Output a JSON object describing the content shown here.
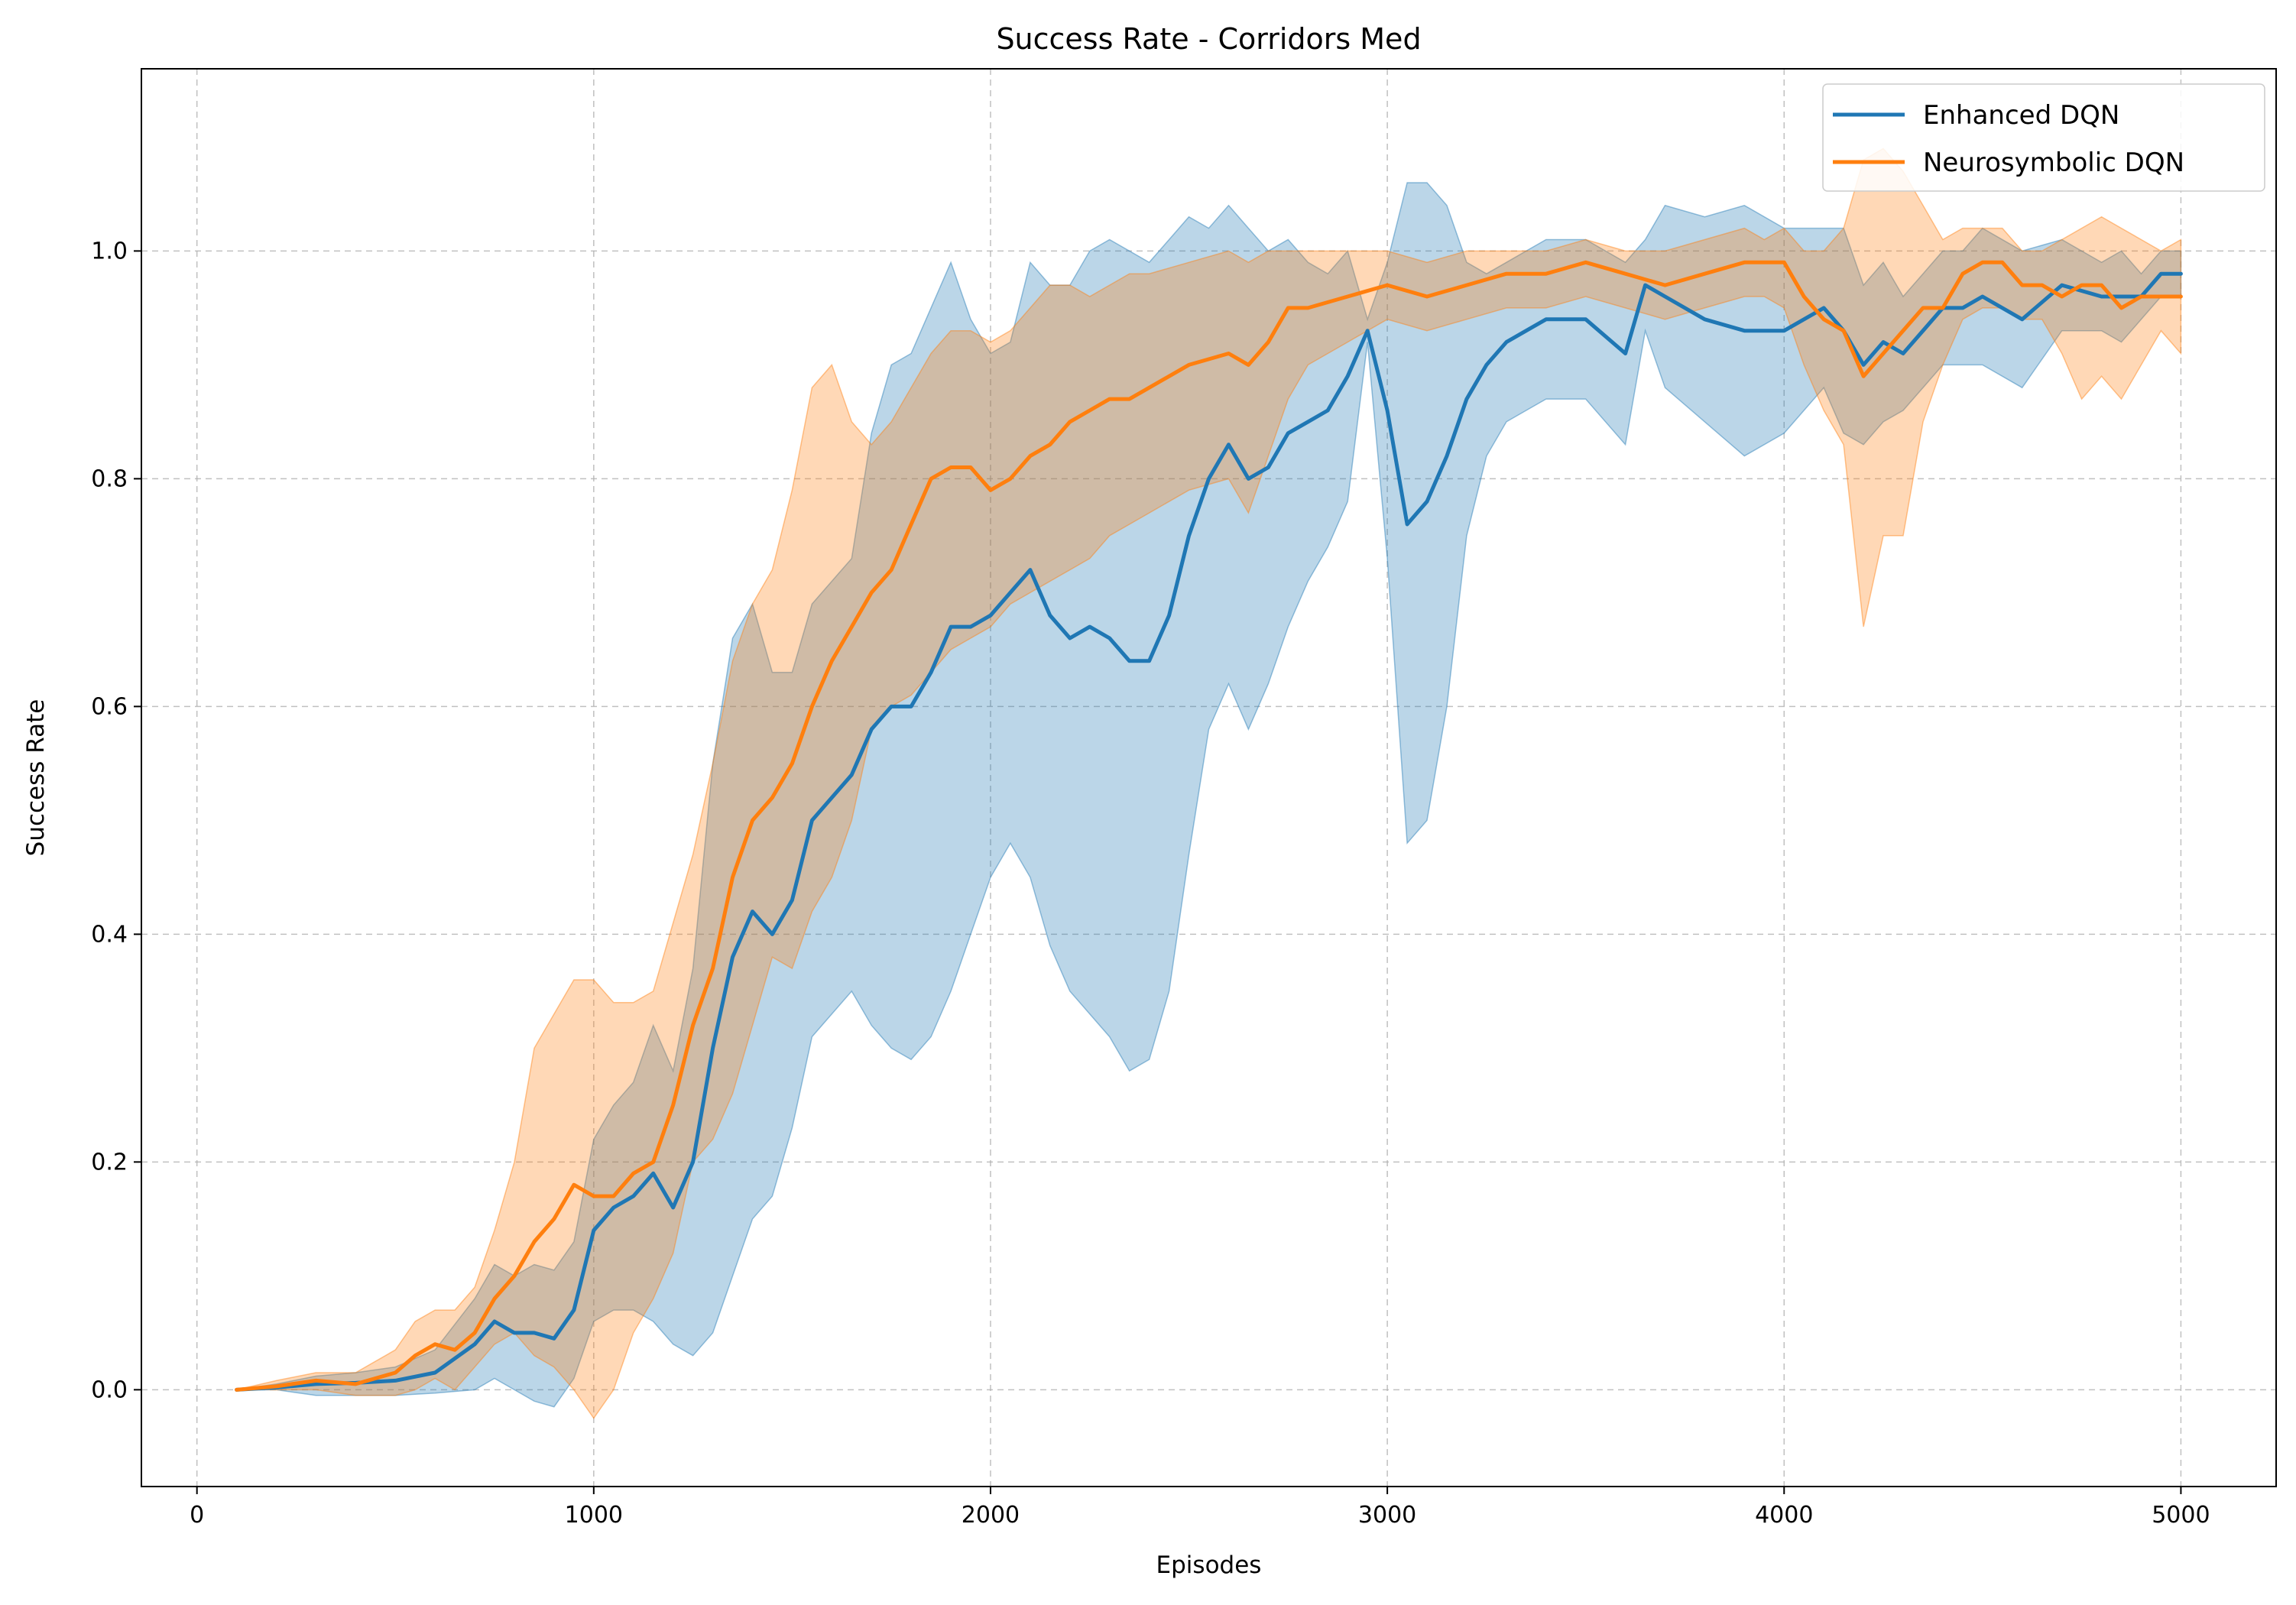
{
  "chart_data": {
    "type": "line",
    "title": "Success Rate - Corridors Med",
    "xlabel": "Episodes",
    "ylabel": "Success Rate",
    "xlim": [
      -140,
      5240
    ],
    "ylim": [
      -0.085,
      1.16
    ],
    "xticks": [
      0,
      1000,
      2000,
      3000,
      4000,
      5000
    ],
    "xtick_labels": [
      "0",
      "1000",
      "2000",
      "3000",
      "4000",
      "5000"
    ],
    "yticks": [
      0.0,
      0.2,
      0.4,
      0.6,
      0.8,
      1.0
    ],
    "ytick_labels": [
      "0.0",
      "0.2",
      "0.4",
      "0.6",
      "0.8",
      "1.0"
    ],
    "grid": true,
    "legend_position": "top-right",
    "series": [
      {
        "name": "Enhanced DQN",
        "color": "#1f77b4",
        "x": [
          100,
          200,
          300,
          400,
          500,
          600,
          700,
          750,
          800,
          850,
          900,
          950,
          1000,
          1050,
          1100,
          1150,
          1200,
          1250,
          1300,
          1350,
          1400,
          1450,
          1500,
          1550,
          1600,
          1650,
          1700,
          1750,
          1800,
          1850,
          1900,
          1950,
          2000,
          2050,
          2100,
          2150,
          2200,
          2250,
          2300,
          2350,
          2400,
          2450,
          2500,
          2550,
          2600,
          2650,
          2700,
          2750,
          2800,
          2850,
          2900,
          2950,
          3000,
          3050,
          3100,
          3150,
          3200,
          3250,
          3300,
          3350,
          3400,
          3500,
          3600,
          3650,
          3700,
          3800,
          3900,
          4000,
          4100,
          4150,
          4200,
          4250,
          4300,
          4350,
          4400,
          4450,
          4500,
          4600,
          4700,
          4800,
          4850,
          4900,
          4950,
          5000
        ],
        "mean": [
          0.0,
          0.002,
          0.005,
          0.006,
          0.008,
          0.015,
          0.04,
          0.06,
          0.05,
          0.05,
          0.045,
          0.07,
          0.14,
          0.16,
          0.17,
          0.19,
          0.16,
          0.2,
          0.3,
          0.38,
          0.42,
          0.4,
          0.43,
          0.5,
          0.52,
          0.54,
          0.58,
          0.6,
          0.6,
          0.63,
          0.67,
          0.67,
          0.68,
          0.7,
          0.72,
          0.68,
          0.66,
          0.67,
          0.66,
          0.64,
          0.64,
          0.68,
          0.75,
          0.8,
          0.83,
          0.8,
          0.81,
          0.84,
          0.85,
          0.86,
          0.89,
          0.93,
          0.86,
          0.76,
          0.78,
          0.82,
          0.87,
          0.9,
          0.92,
          0.93,
          0.94,
          0.94,
          0.91,
          0.97,
          0.96,
          0.94,
          0.93,
          0.93,
          0.95,
          0.93,
          0.9,
          0.92,
          0.91,
          0.93,
          0.95,
          0.95,
          0.96,
          0.94,
          0.97,
          0.96,
          0.96,
          0.96,
          0.98,
          0.98
        ],
        "lower": [
          0.0,
          0.0,
          -0.005,
          -0.005,
          -0.005,
          -0.003,
          0.0,
          0.01,
          0.0,
          -0.01,
          -0.015,
          0.01,
          0.06,
          0.07,
          0.07,
          0.06,
          0.04,
          0.03,
          0.05,
          0.1,
          0.15,
          0.17,
          0.23,
          0.31,
          0.33,
          0.35,
          0.32,
          0.3,
          0.29,
          0.31,
          0.35,
          0.4,
          0.45,
          0.48,
          0.45,
          0.39,
          0.35,
          0.33,
          0.31,
          0.28,
          0.29,
          0.35,
          0.47,
          0.58,
          0.62,
          0.58,
          0.62,
          0.67,
          0.71,
          0.74,
          0.78,
          0.92,
          0.73,
          0.48,
          0.5,
          0.6,
          0.75,
          0.82,
          0.85,
          0.86,
          0.87,
          0.87,
          0.83,
          0.93,
          0.88,
          0.85,
          0.82,
          0.84,
          0.88,
          0.84,
          0.83,
          0.85,
          0.86,
          0.88,
          0.9,
          0.9,
          0.9,
          0.88,
          0.93,
          0.93,
          0.92,
          0.94,
          0.96,
          0.96
        ],
        "upper": [
          0.0,
          0.005,
          0.012,
          0.015,
          0.02,
          0.035,
          0.08,
          0.11,
          0.1,
          0.11,
          0.105,
          0.13,
          0.22,
          0.25,
          0.27,
          0.32,
          0.28,
          0.37,
          0.55,
          0.66,
          0.69,
          0.63,
          0.63,
          0.69,
          0.71,
          0.73,
          0.84,
          0.9,
          0.91,
          0.95,
          0.99,
          0.94,
          0.91,
          0.92,
          0.99,
          0.97,
          0.97,
          1.0,
          1.01,
          1.0,
          0.99,
          1.01,
          1.03,
          1.02,
          1.04,
          1.02,
          1.0,
          1.01,
          0.99,
          0.98,
          1.0,
          0.94,
          0.99,
          1.06,
          1.06,
          1.04,
          0.99,
          0.98,
          0.99,
          1.0,
          1.01,
          1.01,
          0.99,
          1.01,
          1.04,
          1.03,
          1.04,
          1.02,
          1.02,
          1.02,
          0.97,
          0.99,
          0.96,
          0.98,
          1.0,
          1.0,
          1.02,
          1.0,
          1.01,
          0.99,
          1.0,
          0.98,
          1.0,
          1.0
        ]
      },
      {
        "name": "Neurosymbolic DQN",
        "color": "#ff7f0e",
        "x": [
          100,
          200,
          300,
          400,
          500,
          550,
          600,
          650,
          700,
          750,
          800,
          850,
          900,
          950,
          1000,
          1050,
          1100,
          1150,
          1200,
          1250,
          1300,
          1350,
          1400,
          1450,
          1500,
          1550,
          1600,
          1650,
          1700,
          1750,
          1800,
          1850,
          1900,
          1950,
          2000,
          2050,
          2100,
          2150,
          2200,
          2250,
          2300,
          2350,
          2400,
          2500,
          2600,
          2650,
          2700,
          2750,
          2800,
          2900,
          3000,
          3100,
          3200,
          3300,
          3400,
          3500,
          3600,
          3700,
          3800,
          3900,
          3950,
          4000,
          4050,
          4100,
          4150,
          4200,
          4250,
          4300,
          4350,
          4400,
          4450,
          4500,
          4550,
          4600,
          4650,
          4700,
          4750,
          4800,
          4850,
          4900,
          4950,
          5000
        ],
        "mean": [
          0.0,
          0.003,
          0.008,
          0.005,
          0.015,
          0.03,
          0.04,
          0.035,
          0.05,
          0.08,
          0.1,
          0.13,
          0.15,
          0.18,
          0.17,
          0.17,
          0.19,
          0.2,
          0.25,
          0.32,
          0.37,
          0.45,
          0.5,
          0.52,
          0.55,
          0.6,
          0.64,
          0.67,
          0.7,
          0.72,
          0.76,
          0.8,
          0.81,
          0.81,
          0.79,
          0.8,
          0.82,
          0.83,
          0.85,
          0.86,
          0.87,
          0.87,
          0.88,
          0.9,
          0.91,
          0.9,
          0.92,
          0.95,
          0.95,
          0.96,
          0.97,
          0.96,
          0.97,
          0.98,
          0.98,
          0.99,
          0.98,
          0.97,
          0.98,
          0.99,
          0.99,
          0.99,
          0.96,
          0.94,
          0.93,
          0.89,
          0.91,
          0.93,
          0.95,
          0.95,
          0.98,
          0.99,
          0.99,
          0.97,
          0.97,
          0.96,
          0.97,
          0.97,
          0.95,
          0.96,
          0.96,
          0.96
        ],
        "lower": [
          0.0,
          0.0,
          0.0,
          -0.005,
          -0.005,
          0.0,
          0.01,
          0.0,
          0.02,
          0.04,
          0.05,
          0.03,
          0.02,
          0.0,
          -0.025,
          0.0,
          0.05,
          0.08,
          0.12,
          0.2,
          0.22,
          0.26,
          0.32,
          0.38,
          0.37,
          0.42,
          0.45,
          0.5,
          0.58,
          0.6,
          0.61,
          0.63,
          0.65,
          0.66,
          0.67,
          0.69,
          0.7,
          0.71,
          0.72,
          0.73,
          0.75,
          0.76,
          0.77,
          0.79,
          0.8,
          0.77,
          0.82,
          0.87,
          0.9,
          0.92,
          0.94,
          0.93,
          0.94,
          0.95,
          0.95,
          0.96,
          0.95,
          0.94,
          0.95,
          0.96,
          0.96,
          0.95,
          0.9,
          0.86,
          0.83,
          0.67,
          0.75,
          0.75,
          0.85,
          0.9,
          0.94,
          0.95,
          0.95,
          0.94,
          0.94,
          0.91,
          0.87,
          0.89,
          0.87,
          0.9,
          0.93,
          0.91
        ],
        "upper": [
          0.0,
          0.008,
          0.015,
          0.015,
          0.035,
          0.06,
          0.07,
          0.07,
          0.09,
          0.14,
          0.2,
          0.3,
          0.33,
          0.36,
          0.36,
          0.34,
          0.34,
          0.35,
          0.41,
          0.47,
          0.55,
          0.64,
          0.69,
          0.72,
          0.79,
          0.88,
          0.9,
          0.85,
          0.83,
          0.85,
          0.88,
          0.91,
          0.93,
          0.93,
          0.92,
          0.93,
          0.95,
          0.97,
          0.97,
          0.96,
          0.97,
          0.98,
          0.98,
          0.99,
          1.0,
          0.99,
          1.0,
          1.0,
          1.0,
          1.0,
          1.0,
          0.99,
          1.0,
          1.0,
          1.0,
          1.01,
          1.0,
          1.0,
          1.01,
          1.02,
          1.01,
          1.02,
          1.0,
          1.0,
          1.02,
          1.08,
          1.09,
          1.07,
          1.04,
          1.01,
          1.02,
          1.02,
          1.02,
          1.0,
          1.0,
          1.01,
          1.02,
          1.03,
          1.02,
          1.01,
          1.0,
          1.01
        ]
      }
    ]
  }
}
